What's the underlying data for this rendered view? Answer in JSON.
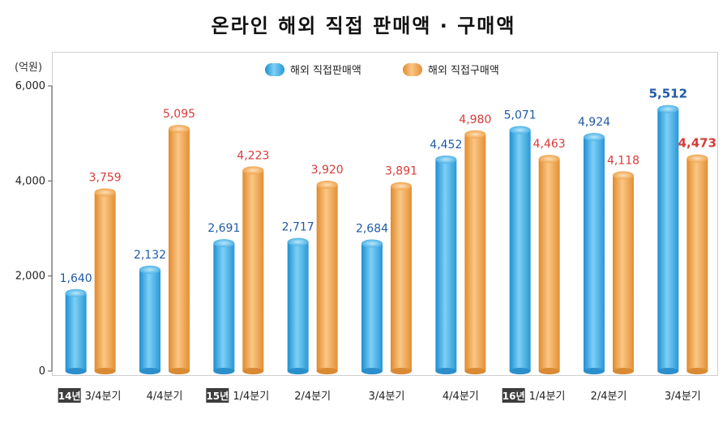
{
  "title": "온라인 해외 직접 판매액 · 구매액",
  "chart_data": {
    "type": "bar",
    "unit_label": "(억원)",
    "ylim": [
      0,
      6000
    ],
    "yticks": [
      "0",
      "2,000",
      "4,000",
      "6,000"
    ],
    "year_tags": [
      "14년",
      "",
      "15년",
      "",
      "",
      "",
      "16년",
      "",
      ""
    ],
    "categories": [
      "3/4분기",
      "4/4분기",
      "1/4분기",
      "2/4분기",
      "3/4분기",
      "4/4분기",
      "1/4분기",
      "2/4분기",
      "3/4분기"
    ],
    "series": [
      {
        "name": "해외 직접판매액",
        "color": "#3aa7e0",
        "label_color": "#1f5aa6",
        "values": [
          1640,
          2132,
          2691,
          2717,
          2684,
          4452,
          5071,
          4924,
          5512
        ],
        "labels": [
          "1,640",
          "2,132",
          "2,691",
          "2,717",
          "2,684",
          "4,452",
          "5,071",
          "4,924",
          "5,512"
        ]
      },
      {
        "name": "해외 직접구매액",
        "color": "#f0a24a",
        "label_color": "#d93a3a",
        "values": [
          3759,
          5095,
          4223,
          3920,
          3891,
          4980,
          4463,
          4118,
          4473
        ],
        "labels": [
          "3,759",
          "5,095",
          "4,223",
          "3,920",
          "3,891",
          "4,980",
          "4,463",
          "4,118",
          "4,473"
        ]
      }
    ],
    "grid": false,
    "legend_position": "top"
  }
}
